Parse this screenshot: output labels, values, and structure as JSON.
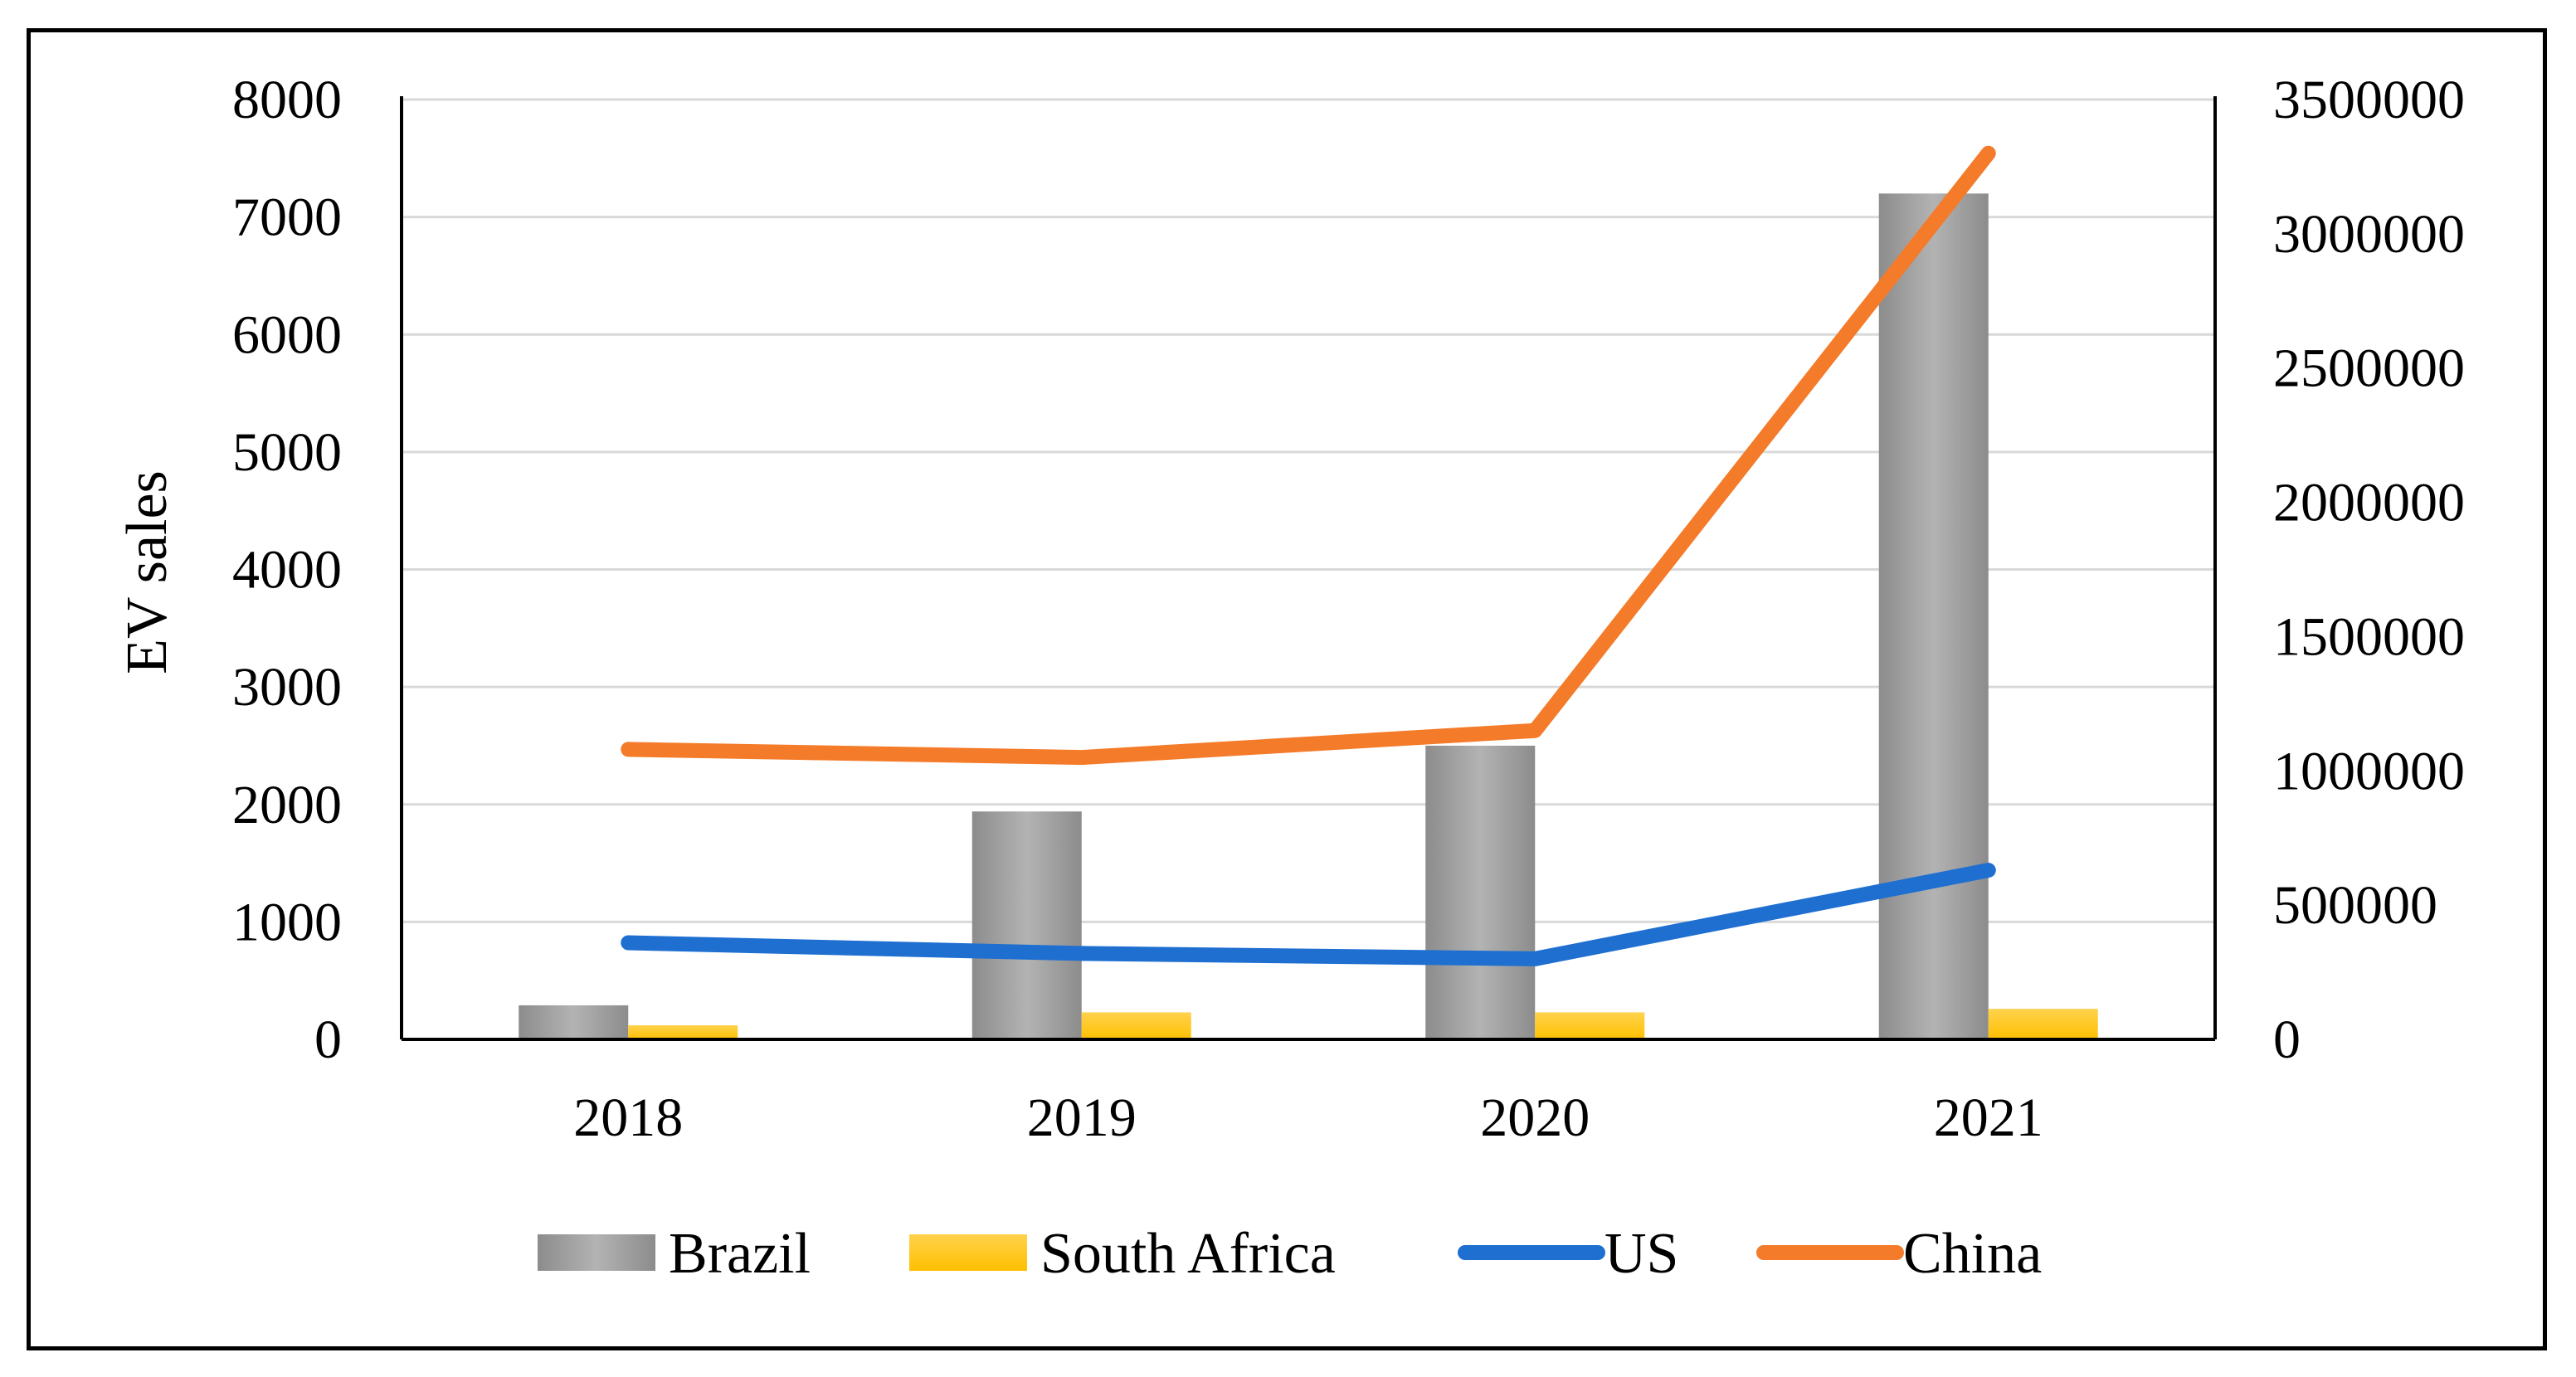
{
  "chart_data": {
    "type": "bar",
    "title": "",
    "xlabel": "",
    "ylabel": "EV sales",
    "categories": [
      "2018",
      "2019",
      "2020",
      "2021"
    ],
    "ylim": [
      0,
      8000
    ],
    "y2lim": [
      0,
      3500000
    ],
    "y_ticks": [
      "0",
      "1000",
      "2000",
      "3000",
      "4000",
      "5000",
      "6000",
      "7000",
      "8000"
    ],
    "y2_ticks": [
      "0",
      "500000",
      "1000000",
      "1500000",
      "2000000",
      "2500000",
      "3000000",
      "3500000"
    ],
    "grid": true,
    "legend_position": "bottom",
    "series": [
      {
        "name": "Brazil",
        "kind": "bar",
        "axis": "left",
        "color": "#a6a6a6",
        "values": [
          290,
          1940,
          2500,
          7200
        ]
      },
      {
        "name": "South Africa",
        "kind": "bar",
        "axis": "left",
        "color": "#ffc000",
        "values": [
          120,
          230,
          230,
          260
        ]
      },
      {
        "name": "US",
        "kind": "line",
        "axis": "right",
        "color": "#1f6fd1",
        "values": [
          360000,
          320000,
          300000,
          630000
        ]
      },
      {
        "name": "China",
        "kind": "line",
        "axis": "right",
        "color": "#f47b2a",
        "values": [
          1080000,
          1050000,
          1150000,
          3300000
        ]
      }
    ]
  }
}
